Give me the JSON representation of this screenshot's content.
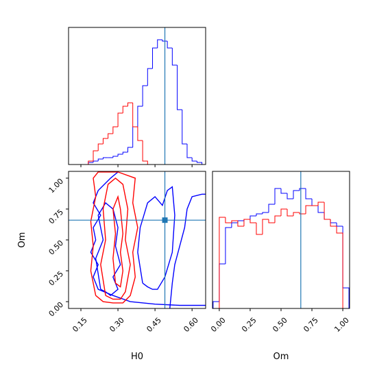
{
  "chart_data": [
    {
      "type": "histogram",
      "xlim": [
        0.1,
        0.655
      ],
      "ylim": [
        0,
        200
      ],
      "xticks": [
        0.15,
        {
          "value": 0.3,
          "label": "0.30"
        },
        0.45,
        {
          "value": 0.6,
          "label": "0.60"
        }
      ],
      "show_tick_labels": false,
      "truth": 0.49,
      "truth_color": "#1f77b4",
      "series": [
        {
          "color": "#0000ff",
          "bins": [
            0.18,
            0.2,
            0.22,
            0.24,
            0.26,
            0.28,
            0.3,
            0.32,
            0.34,
            0.36,
            0.38,
            0.4,
            0.42,
            0.44,
            0.46,
            0.48,
            0.5,
            0.52,
            0.54,
            0.56,
            0.58,
            0.6,
            0.62,
            0.64
          ],
          "values": [
            3,
            5,
            8,
            10,
            10,
            12,
            15,
            18,
            25,
            55,
            85,
            115,
            140,
            170,
            182,
            180,
            170,
            145,
            80,
            30,
            10,
            5,
            3
          ]
        },
        {
          "color": "#ff0000",
          "bins": [
            0.18,
            0.2,
            0.22,
            0.24,
            0.26,
            0.28,
            0.3,
            0.32,
            0.34,
            0.36,
            0.38,
            0.4,
            0.42
          ],
          "values": [
            5,
            20,
            30,
            38,
            45,
            55,
            75,
            85,
            90,
            55,
            35,
            5
          ]
        }
      ]
    },
    {
      "type": "contour",
      "xlabel": "H0",
      "ylabel": "Om",
      "xlim": [
        0.1,
        0.655
      ],
      "ylim": [
        -0.055,
        1.055
      ],
      "xticks": [
        0.15,
        {
          "value": 0.3,
          "label": "0.30"
        },
        0.45,
        {
          "value": 0.6,
          "label": "0.60"
        }
      ],
      "yticks": [
        {
          "value": 0,
          "label": "0.00"
        },
        0.25,
        {
          "value": 0.5,
          "label": "0.50"
        },
        0.75,
        {
          "value": 1,
          "label": "1.00"
        }
      ],
      "truth": {
        "x": 0.49,
        "y": 0.66
      },
      "truth_color": "#1f77b4",
      "series": [
        {
          "color": "#0000ff",
          "x": [
            0.655,
            0.55,
            0.45,
            0.35,
            0.28,
            0.22,
            0.2,
            0.22,
            0.19,
            0.21,
            0.2,
            0.23,
            0.2,
            0.22,
            0.27,
            0.3
          ],
          "y": [
            -0.03,
            -0.03,
            -0.02,
            0,
            0.05,
            0.1,
            0.2,
            0.3,
            0.4,
            0.5,
            0.6,
            0.7,
            0.8,
            0.9,
            1.0,
            1.05
          ]
        },
        {
          "color": "#0000ff",
          "x": [
            0.51,
            0.52,
            0.53,
            0.55,
            0.57,
            0.58,
            0.6,
            0.64,
            0.655
          ],
          "y": [
            -0.055,
            0.15,
            0.3,
            0.45,
            0.6,
            0.75,
            0.85,
            0.87,
            0.87
          ]
        },
        {
          "color": "#0000ff",
          "x": [
            0.4,
            0.38,
            0.39,
            0.42,
            0.45,
            0.48,
            0.5,
            0.52,
            0.53,
            0.52,
            0.49,
            0.46,
            0.44,
            0.42,
            0.4
          ],
          "y": [
            0.15,
            0.4,
            0.6,
            0.8,
            0.85,
            0.78,
            0.9,
            0.93,
            0.7,
            0.4,
            0.2,
            0.1,
            0.1,
            0.12,
            0.15
          ]
        },
        {
          "color": "#0000ff",
          "x": [
            0.23,
            0.21,
            0.24,
            0.22,
            0.25,
            0.28,
            0.3,
            0.29,
            0.31,
            0.28,
            0.3,
            0.27,
            0.25,
            0.23
          ],
          "y": [
            0.1,
            0.35,
            0.5,
            0.7,
            0.8,
            0.75,
            0.6,
            0.45,
            0.3,
            0.2,
            0.1,
            0.05,
            0.08,
            0.1
          ]
        },
        {
          "color": "#ff0000",
          "x": [
            0.21,
            0.19,
            0.2,
            0.19,
            0.21,
            0.2,
            0.22,
            0.3,
            0.37,
            0.36,
            0.38,
            0.36,
            0.37,
            0.35,
            0.32,
            0.28,
            0.24,
            0.21
          ],
          "y": [
            0.05,
            0.25,
            0.45,
            0.65,
            0.85,
            1.0,
            1.05,
            1.05,
            1.0,
            0.8,
            0.6,
            0.4,
            0.2,
            0.05,
            -0.01,
            -0.01,
            0,
            0.05
          ]
        },
        {
          "color": "#ff0000",
          "x": [
            0.25,
            0.23,
            0.25,
            0.24,
            0.26,
            0.29,
            0.32,
            0.34,
            0.33,
            0.35,
            0.33,
            0.31,
            0.28,
            0.25
          ],
          "y": [
            0.05,
            0.3,
            0.5,
            0.75,
            0.95,
            1.0,
            0.95,
            0.75,
            0.5,
            0.3,
            0.08,
            0.02,
            0.02,
            0.05
          ]
        },
        {
          "color": "#ff0000",
          "x": [
            0.29,
            0.28,
            0.29,
            0.28,
            0.3,
            0.31,
            0.32,
            0.31,
            0.32,
            0.31,
            0.29
          ],
          "y": [
            0.15,
            0.35,
            0.55,
            0.75,
            0.85,
            0.75,
            0.55,
            0.4,
            0.25,
            0.12,
            0.15
          ]
        }
      ]
    },
    {
      "type": "histogram",
      "xlabel": "Om",
      "xlim": [
        -0.055,
        1.055
      ],
      "ylim": [
        0,
        200
      ],
      "xticks": [
        {
          "value": 0,
          "label": "0.00"
        },
        0.25,
        {
          "value": 0.5,
          "label": "0.50"
        },
        0.75,
        {
          "value": 1,
          "label": "1.00"
        }
      ],
      "truth": 0.66,
      "truth_color": "#1f77b4",
      "series": [
        {
          "color": "#0000ff",
          "bins": [
            -0.05,
            0,
            0.05,
            0.1,
            0.15,
            0.2,
            0.25,
            0.3,
            0.35,
            0.4,
            0.45,
            0.5,
            0.55,
            0.6,
            0.65,
            0.7,
            0.75,
            0.8,
            0.85,
            0.9,
            0.95,
            1.0,
            1.05
          ],
          "values": [
            10,
            65,
            118,
            125,
            128,
            130,
            135,
            138,
            140,
            152,
            175,
            168,
            160,
            172,
            175,
            160,
            150,
            140,
            130,
            125,
            120,
            30
          ]
        },
        {
          "color": "#ff0000",
          "bins": [
            0,
            0.05,
            0.1,
            0.15,
            0.2,
            0.25,
            0.3,
            0.35,
            0.4,
            0.45,
            0.5,
            0.55,
            0.6,
            0.65,
            0.7,
            0.75,
            0.8,
            0.85,
            0.9,
            0.95,
            1.0
          ],
          "values": [
            133,
            125,
            128,
            120,
            130,
            125,
            108,
            130,
            125,
            135,
            145,
            135,
            140,
            138,
            150,
            150,
            155,
            130,
            120,
            110
          ]
        }
      ]
    }
  ]
}
